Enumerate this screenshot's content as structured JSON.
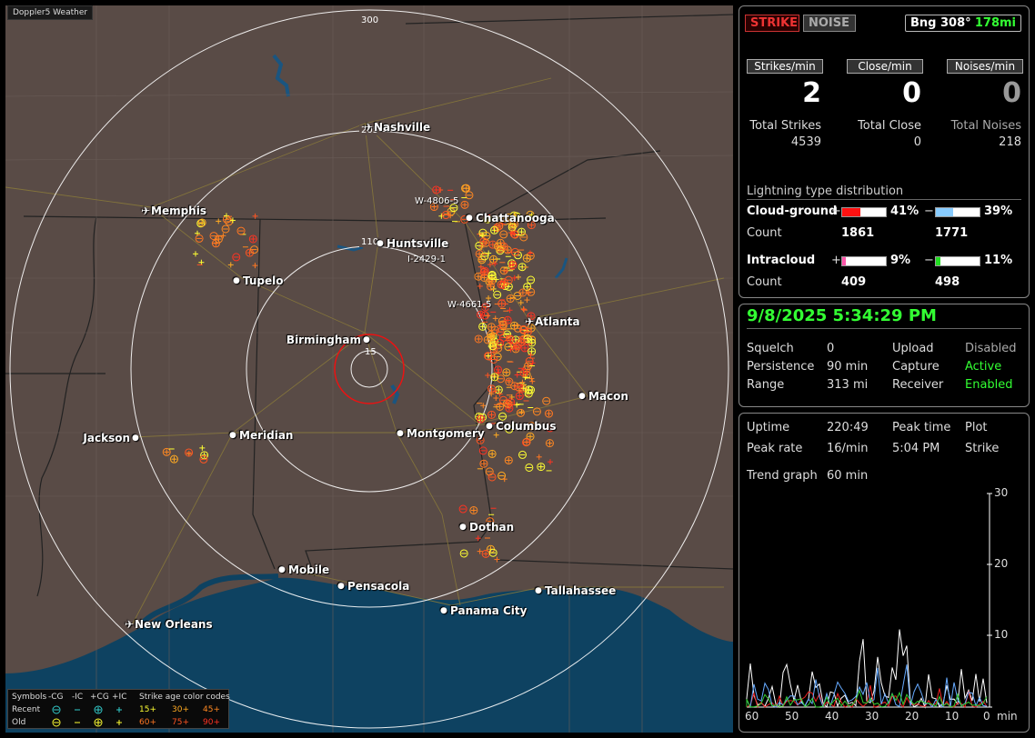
{
  "app": {
    "title": "Doppler5 Weather"
  },
  "map": {
    "range_rings": [
      "300",
      "205",
      "110",
      "15"
    ],
    "cities": [
      {
        "name": "Nashville",
        "icon": "airport-icon"
      },
      {
        "name": "Memphis",
        "icon": "airport-icon"
      },
      {
        "name": "Chattanooga",
        "icon": "city-dot-icon"
      },
      {
        "name": "Huntsville",
        "icon": "city-dot-icon"
      },
      {
        "name": "Tupelo",
        "icon": "city-dot-icon"
      },
      {
        "name": "Atlanta",
        "icon": "airport-icon"
      },
      {
        "name": "Birmingham",
        "icon": "city-dot-icon"
      },
      {
        "name": "Macon",
        "icon": "city-dot-icon"
      },
      {
        "name": "Jackson",
        "icon": "city-dot-icon"
      },
      {
        "name": "Meridian",
        "icon": "city-dot-icon"
      },
      {
        "name": "Montgomery",
        "icon": "city-dot-icon"
      },
      {
        "name": "Columbus",
        "icon": "city-dot-icon"
      },
      {
        "name": "Dothan",
        "icon": "city-dot-icon"
      },
      {
        "name": "Mobile",
        "icon": "city-dot-icon"
      },
      {
        "name": "Pensacola",
        "icon": "city-dot-icon"
      },
      {
        "name": "Tallahassee",
        "icon": "city-dot-icon"
      },
      {
        "name": "Panama City",
        "icon": "city-dot-icon"
      },
      {
        "name": "New Orleans",
        "icon": "airport-icon"
      }
    ],
    "storm_labels": [
      "W-4806-5",
      "I-2429-1",
      "W-4661-5"
    ]
  },
  "legend": {
    "symbols_label": "Symbols",
    "cols": [
      "-CG",
      "-IC",
      "+CG",
      "+IC"
    ],
    "age_title": "Strike age color codes",
    "recent_label": "Recent",
    "old_label": "Old",
    "recent_ages": [
      "15+",
      "30+",
      "45+"
    ],
    "old_ages": [
      "60+",
      "75+",
      "90+"
    ],
    "age_colors": [
      "#ffff33",
      "#ffaa22",
      "#ff8822",
      "#ff7722",
      "#ff5522",
      "#ff3322"
    ]
  },
  "panel1": {
    "strike_btn": "STRIKE",
    "noise_btn": "NOISE",
    "bearing": "Bng 308°",
    "distance": "178mi",
    "rate_headers": [
      "Strikes/min",
      "Close/min",
      "Noises/min"
    ],
    "rate_values": [
      "2",
      "0",
      "0"
    ],
    "totals_labels": [
      "Total Strikes",
      "Total Close",
      "Total Noises"
    ],
    "totals_values": [
      "4539",
      "0",
      "218"
    ],
    "dist_title": "Lightning type distribution",
    "cg_label": "Cloud-ground",
    "ic_label": "Intracloud",
    "count_label": "Count",
    "plus": "+",
    "minus": "−",
    "cg_pos_pct": "41%",
    "cg_neg_pct": "39%",
    "cg_pos_count": "1861",
    "cg_neg_count": "1771",
    "ic_pos_pct": "9%",
    "ic_neg_pct": "11%",
    "ic_pos_count": "409",
    "ic_neg_count": "498",
    "bar_fill": {
      "cg_pos": 0.41,
      "cg_neg": 0.39,
      "ic_pos": 0.09,
      "ic_neg": 0.11
    },
    "bar_colors": {
      "cg_pos": "#ff1111",
      "cg_neg": "#88ccff",
      "ic_pos": "#ff55aa",
      "ic_neg": "#22dd22"
    }
  },
  "panel2": {
    "datetime": "9/8/2025 5:34:29 PM",
    "squelch_label": "Squelch",
    "squelch": "0",
    "persistence_label": "Persistence",
    "persistence": "90 min",
    "range_label": "Range",
    "range": "313 mi",
    "upload_label": "Upload",
    "upload": "Disabled",
    "capture_label": "Capture",
    "capture": "Active",
    "receiver_label": "Receiver",
    "receiver": "Enabled"
  },
  "panel3": {
    "uptime_label": "Uptime",
    "uptime": "220:49",
    "peak_time_label": "Peak time",
    "peak_time": "5:04 PM",
    "plot_label": "Plot",
    "plot": "Strike",
    "peak_rate_label": "Peak rate",
    "peak_rate": "16/min",
    "trend_label": "Trend graph",
    "trend": "60 min",
    "y_ticks": [
      "30",
      "20",
      "10"
    ],
    "x_ticks": [
      "60",
      "50",
      "40",
      "30",
      "20",
      "10",
      "0"
    ],
    "x_unit": "min"
  }
}
